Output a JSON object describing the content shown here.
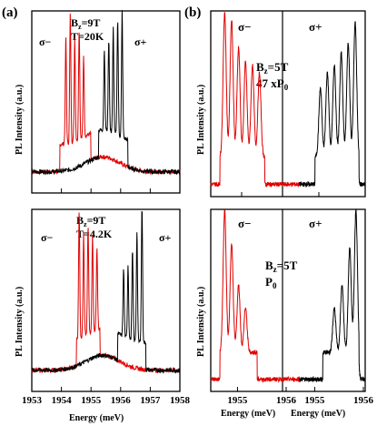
{
  "figure_labels": {
    "a": "(a)",
    "b": "(b)"
  },
  "colors": {
    "sigma_minus": "#e00000",
    "sigma_plus": "#000000",
    "frame": "#000000"
  },
  "chart_data": [
    {
      "id": "a_top",
      "type": "line",
      "panel": "(a)",
      "ylabel": "PL Intensity (a.u.)",
      "xlim": [
        1953,
        1958
      ],
      "x_ticks": [
        1953,
        1954,
        1955,
        1956,
        1957,
        1958
      ],
      "show_tick_labels": false,
      "annotations": {
        "field": "B",
        "field_sub": "z",
        "field_val": "=9T",
        "temp": "T=20K",
        "sigma_minus": "σ−",
        "sigma_plus": "σ+"
      },
      "series": [
        {
          "color": "#e00000",
          "peaks": [
            1954.15,
            1954.3,
            1954.45,
            1954.6,
            1954.75
          ],
          "peak_heights": [
            0.72,
            0.86,
            0.7,
            0.74,
            0.55
          ],
          "onset": 1953.95,
          "cutoff": 1955.0
        },
        {
          "color": "#000000",
          "peaks": [
            1955.45,
            1955.6,
            1955.75,
            1955.9,
            1956.05
          ],
          "peak_heights": [
            0.55,
            0.62,
            0.7,
            0.78,
            0.85
          ],
          "onset": 1955.25,
          "cutoff": 1956.25
        }
      ]
    },
    {
      "id": "a_bottom",
      "type": "line",
      "panel": "(a)",
      "xlabel": "Energy (meV)",
      "ylabel": "PL Intensity (a.u.)",
      "xlim": [
        1953,
        1958
      ],
      "x_ticks": [
        1953,
        1954,
        1955,
        1956,
        1957,
        1958
      ],
      "x_tick_labels": [
        "1953",
        "1954",
        "1955",
        "1956",
        "1957",
        "1958"
      ],
      "show_tick_labels": true,
      "annotations": {
        "field": "B",
        "field_sub": "z",
        "field_val": "=9T",
        "temp": "T=4.2K",
        "sigma_minus": "σ−",
        "sigma_plus": "σ+"
      },
      "series": [
        {
          "color": "#e00000",
          "peaks": [
            1954.6,
            1954.75,
            1954.9,
            1955.05,
            1955.2
          ],
          "peak_heights": [
            0.85,
            0.68,
            0.72,
            0.66,
            0.55
          ],
          "onset": 1954.5,
          "cutoff": 1955.3
        },
        {
          "color": "#000000",
          "peaks": [
            1956.1,
            1956.25,
            1956.4,
            1956.55,
            1956.72
          ],
          "peak_heights": [
            0.45,
            0.5,
            0.6,
            0.75,
            0.92
          ],
          "onset": 1955.9,
          "cutoff": 1956.85
        }
      ]
    },
    {
      "id": "b_top",
      "type": "line",
      "panel": "(b)",
      "ylabel": "PL Intensity (a.u.)",
      "xlim": [
        1954.6,
        1956.6
      ],
      "split_x": 1955.75,
      "show_tick_labels": false,
      "x_ticks": [
        1955,
        1956
      ],
      "annotations": {
        "field": "B",
        "field_sub": "z",
        "field_val": "=5T",
        "power": "47 xP",
        "power_sub": "0",
        "sigma_minus": "σ−",
        "sigma_plus": "σ+"
      },
      "series": [
        {
          "color": "#e00000",
          "peaks": [
            1954.78,
            1954.87,
            1954.96,
            1955.05,
            1955.14,
            1955.23
          ],
          "peak_heights": [
            0.95,
            0.9,
            0.72,
            0.62,
            0.6,
            0.55
          ],
          "onset": 1954.72,
          "cutoff": 1955.3
        },
        {
          "color": "#000000",
          "peaks": [
            1956.02,
            1956.11,
            1956.2,
            1956.29,
            1956.38,
            1956.47
          ],
          "peak_heights": [
            0.45,
            0.55,
            0.6,
            0.68,
            0.75,
            0.88
          ],
          "onset": 1955.95,
          "cutoff": 1956.52
        }
      ]
    },
    {
      "id": "b_bottom",
      "type": "line",
      "panel": "(b)",
      "xlabel": "Energy (meV)",
      "ylabel": "PL Intensity (a.u.)",
      "xlim": [
        1954.6,
        1956.6
      ],
      "split_x": 1955.75,
      "x_ticks_left": [
        1955,
        1956
      ],
      "x_ticks_right": [
        1955,
        1956
      ],
      "x_tick_labels": [
        "1955",
        "1956"
      ],
      "show_tick_labels": true,
      "annotations": {
        "field": "B",
        "field_sub": "z",
        "field_val": "=5T",
        "power": "P",
        "power_sub": "0",
        "sigma_minus": "σ−",
        "sigma_plus": "σ+"
      },
      "series": [
        {
          "color": "#e00000",
          "peaks": [
            1954.78,
            1954.87,
            1954.96,
            1955.05
          ],
          "peak_heights": [
            0.95,
            0.72,
            0.45,
            0.3
          ],
          "onset": 1954.72,
          "cutoff": 1955.2
        },
        {
          "color": "#000000",
          "peaks": [
            1956.2,
            1956.3,
            1956.4,
            1956.48
          ],
          "peak_heights": [
            0.3,
            0.45,
            0.7,
            0.95
          ],
          "onset": 1956.05,
          "cutoff": 1956.52
        }
      ]
    }
  ]
}
